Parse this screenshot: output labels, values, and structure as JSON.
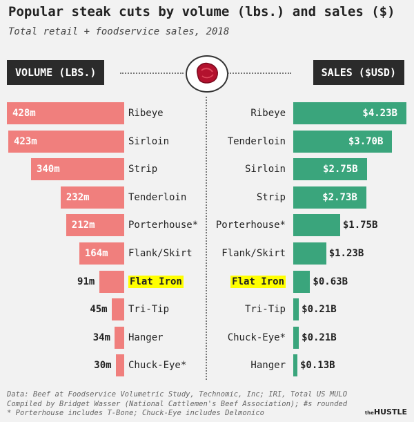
{
  "header": {
    "title": "Popular steak cuts by volume (lbs.) and sales ($)",
    "subtitle": "Total retail + foodservice sales, 2018"
  },
  "volume_panel": {
    "label": "VOLUME (LBS.)"
  },
  "sales_panel": {
    "label": "SALES ($USD)"
  },
  "highlight_color": "#ffff00",
  "colors": {
    "volume": "#f07f7d",
    "sales": "#3aa57c",
    "header_bg": "#2b2b2b"
  },
  "chart_data": [
    {
      "type": "bar",
      "orientation": "horizontal",
      "categories": [
        "Ribeye",
        "Sirloin",
        "Strip",
        "Tenderloin",
        "Porterhouse*",
        "Flank/Skirt",
        "Flat Iron",
        "Tri-Tip",
        "Hanger",
        "Chuck-Eye*"
      ],
      "values": [
        428,
        423,
        340,
        232,
        212,
        164,
        91,
        45,
        34,
        30
      ],
      "data_labels": [
        "428m",
        "423m",
        "340m",
        "232m",
        "212m",
        "164m",
        "91m",
        "45m",
        "34m",
        "30m"
      ],
      "highlight": "Flat Iron",
      "title": "VOLUME (LBS.)"
    },
    {
      "type": "bar",
      "orientation": "horizontal",
      "categories": [
        "Ribeye",
        "Tenderloin",
        "Sirloin",
        "Strip",
        "Porterhouse*",
        "Flank/Skirt",
        "Flat Iron",
        "Tri-Tip",
        "Chuck-Eye*",
        "Hanger"
      ],
      "values": [
        4.23,
        3.7,
        2.75,
        2.73,
        1.75,
        1.23,
        0.63,
        0.21,
        0.21,
        0.13
      ],
      "data_labels": [
        "$4.23B",
        "$3.70B",
        "$2.75B",
        "$2.73B",
        "$1.75B",
        "$1.23B",
        "$0.63B",
        "$0.21B",
        "$0.21B",
        "$0.13B"
      ],
      "highlight": "Flat Iron",
      "title": "SALES ($USD)"
    }
  ],
  "footer": {
    "line1": "Data: Beef at Foodservice Volumetric Study, Technomic, Inc; IRI, Total US MULO",
    "line2": "Compiled by Bridget Wasser (National Cattlemen's Beef Association); #s rounded",
    "line3": "* Porterhouse includes T-Bone; Chuck-Eye includes Delmonico",
    "logo": "HUSTLE"
  }
}
